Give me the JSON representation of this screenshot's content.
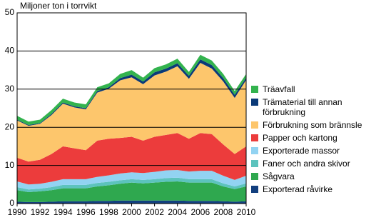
{
  "chart_data": {
    "type": "stacked_area",
    "y_label": "Miljoner ton i torrvikt",
    "x": [
      1990,
      1991,
      1992,
      1993,
      1994,
      1995,
      1996,
      1997,
      1998,
      1999,
      2000,
      2001,
      2002,
      2003,
      2004,
      2005,
      2006,
      2007,
      2008,
      2009,
      2010
    ],
    "xlim": [
      1990,
      2010
    ],
    "xticks": [
      1990,
      1992,
      1994,
      1996,
      1998,
      2000,
      2002,
      2004,
      2006,
      2008,
      2010
    ],
    "ylim": [
      0,
      50
    ],
    "yticks": [
      0,
      10,
      20,
      30,
      40,
      50
    ],
    "grid": true,
    "series": [
      {
        "name": "Exporterad råvirke",
        "color": "#123f7e",
        "values": [
          0.5,
          0.4,
          0.4,
          0.5,
          0.6,
          0.6,
          0.6,
          0.7,
          0.7,
          0.8,
          0.8,
          0.8,
          0.8,
          0.8,
          0.8,
          0.7,
          0.7,
          0.7,
          0.6,
          0.5,
          0.6
        ]
      },
      {
        "name": "Sågvara",
        "color": "#2fa84f",
        "values": [
          3.0,
          2.6,
          2.8,
          3.0,
          3.4,
          3.4,
          3.4,
          3.8,
          4.1,
          4.4,
          4.7,
          4.5,
          4.7,
          4.9,
          5.0,
          4.8,
          4.8,
          4.8,
          3.9,
          3.3,
          3.9
        ]
      },
      {
        "name": "Faner och andra skivor",
        "color": "#5cc3bd",
        "values": [
          0.8,
          0.7,
          0.7,
          0.8,
          0.9,
          0.9,
          0.9,
          0.9,
          0.9,
          0.9,
          0.9,
          0.9,
          0.9,
          1.0,
          1.0,
          0.9,
          0.9,
          0.9,
          0.8,
          0.7,
          0.8
        ]
      },
      {
        "name": "Exporterade massor",
        "color": "#92d3f2",
        "values": [
          1.5,
          1.3,
          1.3,
          1.4,
          1.5,
          1.5,
          1.5,
          1.6,
          1.7,
          1.8,
          1.8,
          1.8,
          1.9,
          2.0,
          2.0,
          2.0,
          2.2,
          2.2,
          2.0,
          1.7,
          2.0
        ]
      },
      {
        "name": "Papper och kartong",
        "color": "#ec3c3c",
        "values": [
          6.2,
          6.0,
          6.3,
          7.3,
          8.6,
          8.1,
          7.6,
          9.5,
          9.6,
          9.3,
          9.3,
          8.5,
          9.2,
          9.3,
          9.7,
          8.6,
          9.9,
          9.6,
          8.2,
          6.8,
          7.7
        ]
      },
      {
        "name": "Förbrukning som brännsle",
        "color": "#fdc66c",
        "values": [
          9.8,
          9.4,
          9.4,
          10.2,
          11.2,
          10.7,
          10.7,
          12.6,
          13.1,
          15.1,
          15.6,
          14.8,
          16.1,
          16.6,
          17.5,
          15.7,
          18.4,
          17.2,
          16.5,
          14.7,
          17.4
        ]
      },
      {
        "name": "Trämaterial till annan förbrukning",
        "color": "#0b3a78",
        "values": [
          0.2,
          0.2,
          0.2,
          0.3,
          0.3,
          0.3,
          0.3,
          0.4,
          0.4,
          0.6,
          0.7,
          0.7,
          0.8,
          0.8,
          0.8,
          0.8,
          0.9,
          0.9,
          0.9,
          0.8,
          0.6
        ]
      },
      {
        "name": "Träavfall",
        "color": "#33b34e",
        "values": [
          1.0,
          0.9,
          0.9,
          1.0,
          1.0,
          1.0,
          1.0,
          1.0,
          1.0,
          1.1,
          1.2,
          1.0,
          1.1,
          1.1,
          1.2,
          1.0,
          1.2,
          1.2,
          1.1,
          1.0,
          1.0
        ]
      }
    ]
  }
}
